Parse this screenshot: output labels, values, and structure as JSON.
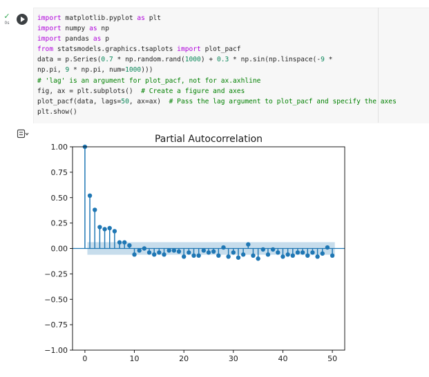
{
  "cell": {
    "status_icon": "check-icon",
    "exec_time": "0s",
    "run_icon": "play-icon",
    "output_toggle_icon": "output-toggle-icon",
    "code_lines": [
      [
        {
          "t": "import",
          "c": "kw"
        },
        {
          "t": " matplotlib.pyplot "
        },
        {
          "t": "as",
          "c": "kw"
        },
        {
          "t": " plt"
        }
      ],
      [
        {
          "t": "import",
          "c": "kw"
        },
        {
          "t": " numpy "
        },
        {
          "t": "as",
          "c": "kw"
        },
        {
          "t": " np"
        }
      ],
      [
        {
          "t": "import",
          "c": "kw"
        },
        {
          "t": " pandas "
        },
        {
          "t": "as",
          "c": "kw"
        },
        {
          "t": " p"
        }
      ],
      [
        {
          "t": "from",
          "c": "kw"
        },
        {
          "t": " statsmodels.graphics.tsaplots "
        },
        {
          "t": "import",
          "c": "kw"
        },
        {
          "t": " plot_pacf"
        }
      ],
      [
        {
          "t": "data = p.Series("
        },
        {
          "t": "0.7",
          "c": "num"
        },
        {
          "t": " * np.random.rand("
        },
        {
          "t": "1000",
          "c": "num"
        },
        {
          "t": ") + "
        },
        {
          "t": "0.3",
          "c": "num"
        },
        {
          "t": " * np.sin(np.linspace(-"
        },
        {
          "t": "9",
          "c": "num"
        },
        {
          "t": " *"
        }
      ],
      [
        {
          "t": "np.pi, "
        },
        {
          "t": "9",
          "c": "num"
        },
        {
          "t": " * np.pi, num="
        },
        {
          "t": "1000",
          "c": "num"
        },
        {
          "t": ")))"
        }
      ],
      [
        {
          "t": "# 'lag' is an argument for plot_pacf, not for ax.axhline",
          "c": "cm"
        }
      ],
      [
        {
          "t": "fig, ax = plt.subplots()  "
        },
        {
          "t": "# Create a figure and axes",
          "c": "cm"
        }
      ],
      [
        {
          "t": "plot_pacf(data, lags="
        },
        {
          "t": "50",
          "c": "num"
        },
        {
          "t": ", ax=ax)  "
        },
        {
          "t": "# Pass the lag argument to plot_pacf and specify the axes",
          "c": "cm"
        }
      ],
      [
        {
          "t": "plt.show()"
        }
      ]
    ]
  },
  "colors": {
    "series": "#1f77b4",
    "confidence_band": "#1f77b4",
    "axes": "#000000"
  },
  "chart_data": {
    "type": "stem",
    "title": "Partial Autocorrelation",
    "xlabel": "",
    "ylabel": "",
    "xlim": [
      -2.5,
      52.5
    ],
    "ylim": [
      -1.0,
      1.0
    ],
    "xticks": [
      0,
      10,
      20,
      30,
      40,
      50
    ],
    "xtick_labels": [
      "0",
      "10",
      "20",
      "30",
      "40",
      "50"
    ],
    "yticks": [
      1.0,
      0.75,
      0.5,
      0.25,
      0.0,
      -0.25,
      -0.5,
      -0.75,
      -1.0
    ],
    "ytick_labels": [
      "1.00",
      "0.75",
      "0.50",
      "0.25",
      "0.00",
      "−0.25",
      "−0.50",
      "−0.75",
      "−1.00"
    ],
    "confidence_interval": 0.062,
    "lags": [
      0,
      1,
      2,
      3,
      4,
      5,
      6,
      7,
      8,
      9,
      10,
      11,
      12,
      13,
      14,
      15,
      16,
      17,
      18,
      19,
      20,
      21,
      22,
      23,
      24,
      25,
      26,
      27,
      28,
      29,
      30,
      31,
      32,
      33,
      34,
      35,
      36,
      37,
      38,
      39,
      40,
      41,
      42,
      43,
      44,
      45,
      46,
      47,
      48,
      49,
      50
    ],
    "values": [
      1.0,
      0.52,
      0.38,
      0.21,
      0.19,
      0.2,
      0.17,
      0.06,
      0.06,
      0.03,
      -0.06,
      -0.02,
      0.0,
      -0.04,
      -0.06,
      -0.04,
      -0.06,
      -0.02,
      -0.02,
      -0.03,
      -0.08,
      -0.04,
      -0.07,
      -0.07,
      -0.02,
      -0.04,
      -0.03,
      -0.07,
      0.01,
      -0.08,
      -0.04,
      -0.09,
      -0.06,
      0.04,
      -0.07,
      -0.1,
      -0.01,
      -0.06,
      -0.01,
      -0.04,
      -0.08,
      -0.06,
      -0.07,
      -0.04,
      -0.04,
      -0.07,
      -0.04,
      -0.08,
      -0.05,
      0.01,
      -0.07
    ]
  }
}
